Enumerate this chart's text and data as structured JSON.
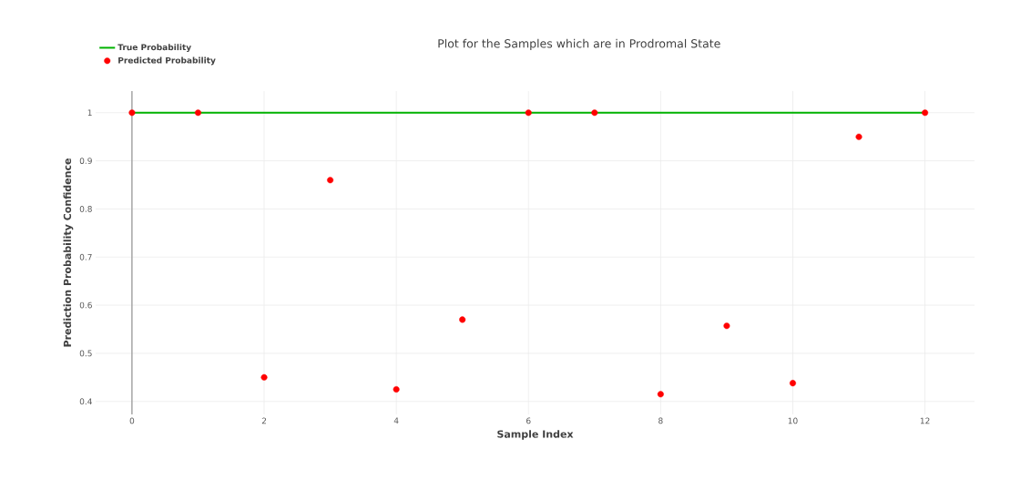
{
  "chart_data": {
    "type": "scatter",
    "title": "Plot for the Samples which are in Prodromal State",
    "xlabel": "Sample Index",
    "ylabel": "Prediction Probability Confidence",
    "x": [
      0,
      1,
      2,
      3,
      4,
      5,
      6,
      7,
      8,
      9,
      10,
      11,
      12
    ],
    "series": [
      {
        "name": "True Probability",
        "type": "line",
        "color": "#00b200",
        "marker": "none",
        "values": [
          1,
          1,
          1,
          1,
          1,
          1,
          1,
          1,
          1,
          1,
          1,
          1,
          1
        ]
      },
      {
        "name": "Predicted Probability",
        "color": "#ff0000",
        "marker": "circle",
        "values": [
          1,
          1,
          0.45,
          0.86,
          0.425,
          0.57,
          1,
          1,
          0.415,
          0.557,
          0.438,
          0.95,
          1
        ]
      }
    ],
    "xlim": [
      -0.55,
      12.75
    ],
    "ylim": [
      0.373,
      1.045
    ],
    "xticks": [
      0,
      2,
      4,
      6,
      8,
      10,
      12
    ],
    "yticks": [
      0.4,
      0.5,
      0.6,
      0.7,
      0.8,
      0.9,
      1
    ],
    "ref_lines": [
      {
        "axis": "x",
        "value": 0,
        "color": "#7f7f7f"
      }
    ],
    "grid": true,
    "legend": "top left"
  }
}
